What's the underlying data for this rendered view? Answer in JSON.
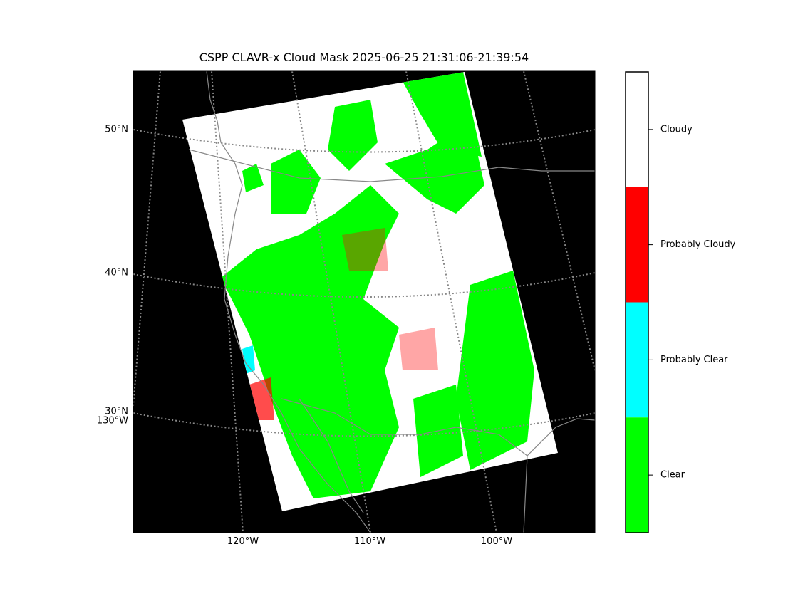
{
  "title": "CSPP CLAVR-x Cloud Mask 2025-06-25 21:31:06-21:39:54",
  "map": {
    "lat_labels": [
      "50°N",
      "40°N",
      "30°N"
    ],
    "lon_labels": [
      "120°W",
      "110°W",
      "100°W"
    ],
    "left_lon_label": "130°W"
  },
  "colorbar": {
    "entries": [
      {
        "label": "Cloudy",
        "color": "#ffffff"
      },
      {
        "label": "Probably Cloudy",
        "color": "#ff0000"
      },
      {
        "label": "Probably Clear",
        "color": "#00ffff"
      },
      {
        "label": "Clear",
        "color": "#00ff00"
      }
    ]
  }
}
